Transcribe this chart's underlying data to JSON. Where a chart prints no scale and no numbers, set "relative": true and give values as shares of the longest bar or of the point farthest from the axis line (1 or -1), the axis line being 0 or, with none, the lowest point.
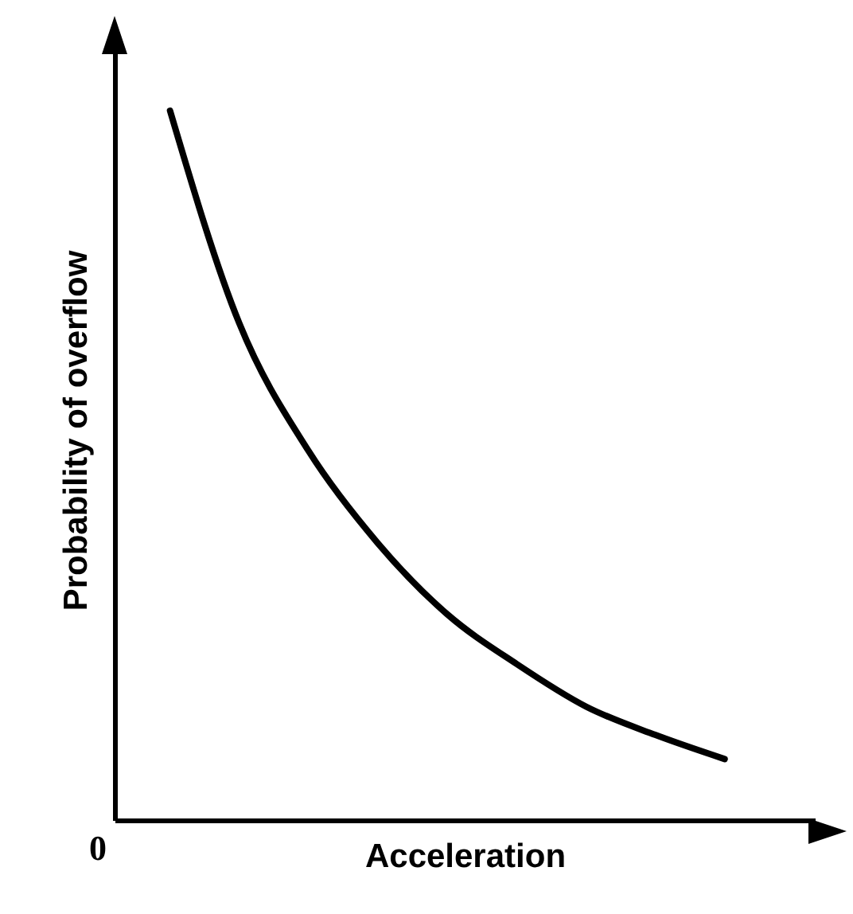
{
  "chart_data": {
    "type": "line",
    "relative": true,
    "xlabel": "Acceleration",
    "ylabel": "Probability of overflow",
    "annotations": [
      "0"
    ],
    "categories": [
      null,
      null,
      null,
      null,
      null,
      null,
      null,
      null,
      null
    ],
    "series": [
      {
        "color": "#000000",
        "values": [
          1,
          0.7,
          0.52,
          0.39,
          0.29,
          0.22,
          0.16,
          0.12,
          0.086
        ]
      }
    ],
    "marker": "none",
    "line_style": "solid",
    "grid": false,
    "legend": false
  }
}
